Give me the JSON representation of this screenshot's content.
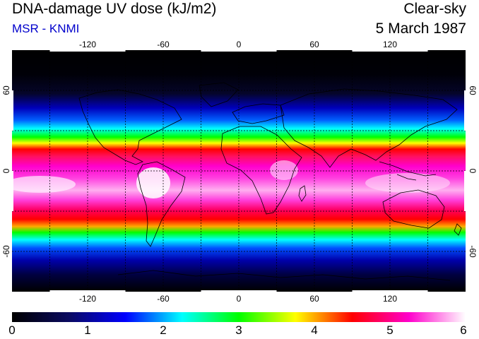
{
  "header": {
    "title": "DNA-damage UV dose (kJ/m2)",
    "source": "MSR - KNMI",
    "condition": "Clear-sky",
    "date": "5 March 1987"
  },
  "colors": {
    "title": "#000000",
    "source": "#0000cc"
  },
  "map": {
    "lon_ticks": [
      "-120",
      "-60",
      "0",
      "60",
      "120"
    ],
    "lat_ticks": [
      "60",
      "0",
      "-60"
    ],
    "lat_ticks_right": [
      "60",
      "0",
      "-60"
    ]
  },
  "colorbar": {
    "labels": [
      "0",
      "1",
      "2",
      "3",
      "4",
      "5",
      "6"
    ],
    "stops": [
      "#000000",
      "#0a0a60",
      "#0000ff",
      "#00ffff",
      "#00ff00",
      "#ffff00",
      "#ff0000",
      "#ff00cc",
      "#ffffff"
    ]
  }
}
